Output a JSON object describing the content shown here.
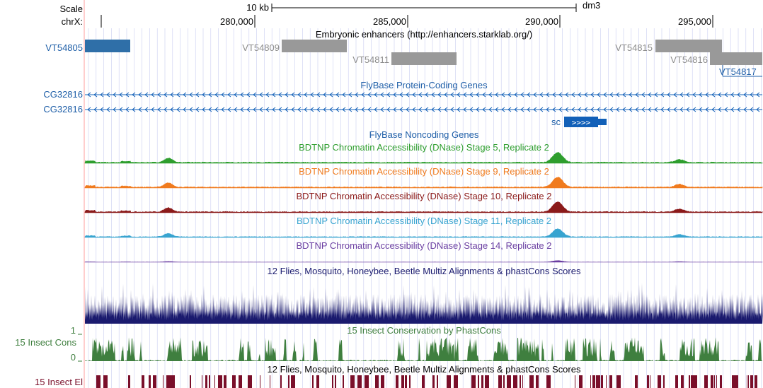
{
  "ruler": {
    "scale_label": "Scale",
    "chrom_label": "chrX:",
    "scale_bar_label": "10 kb",
    "assembly": "dm3",
    "positions": [
      "280,000",
      "285,000",
      "290,000",
      "295,000"
    ]
  },
  "tracks": {
    "enhancers": {
      "title": "Embryonic enhancers (http://enhancers.starklab.org/)",
      "items": [
        "VT54805",
        "VT54809",
        "VT54811",
        "VT54815",
        "VT54816",
        "VT54817"
      ]
    },
    "protein_genes": {
      "title": "FlyBase Protein-Coding Genes",
      "genes": [
        "CG32816",
        "CG32816",
        "sc"
      ]
    },
    "noncoding_genes": {
      "title": "FlyBase Noncoding Genes"
    },
    "dnase": [
      {
        "title": "BDTNP Chromatin Accessibility (DNase) Stage 5, Replicate 2",
        "color": "#2e9e2e"
      },
      {
        "title": "BDTNP Chromatin Accessibility (DNase) Stage 9, Replicate 2",
        "color": "#f07b1e"
      },
      {
        "title": "BDTNP Chromatin Accessibility (DNase) Stage 10, Replicate 2",
        "color": "#8b1a1a"
      },
      {
        "title": "BDTNP Chromatin Accessibility (DNase) Stage 11, Replicate 2",
        "color": "#38a4d0"
      },
      {
        "title": "BDTNP Chromatin Accessibility (DNase) Stage 14, Replicate 2",
        "color": "#6a3ea1"
      }
    ],
    "multiz": {
      "title": "12 Flies, Mosquito, Honeybee, Beetle Multiz Alignments & phastCons Scores",
      "color": "#1a1a6e"
    },
    "cons": {
      "title": "15 Insect Conservation by PhastCons",
      "side_label": "15 Insect Cons",
      "axis_max": "1",
      "axis_min": "0",
      "color": "#3f7f3f"
    },
    "elements": {
      "title": "12 Flies, Mosquito, Honeybee, Beetle Multiz Alignments & phastCons Scores",
      "side_label": "15 Insect El",
      "color": "#7a0f2a"
    }
  },
  "colors": {
    "link_blue": "#1f5fa8",
    "gray_item": "#8c8c8c",
    "gene_blue": "#1260b8",
    "grid": "#c9cdf0",
    "left_border": "#ff9c9c"
  }
}
